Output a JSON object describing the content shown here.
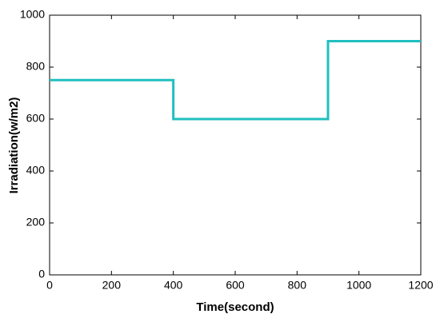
{
  "chart_data": {
    "type": "line",
    "x_label": "Time(second)",
    "y_label": "Irradiation(w/m2)",
    "x": [
      0,
      400,
      400,
      900,
      900,
      1200
    ],
    "series": [
      {
        "color": "#20bfbf",
        "values": [
          750,
          750,
          600,
          600,
          900,
          900
        ]
      }
    ],
    "xlim": [
      0,
      1200
    ],
    "xticks": [
      0,
      200,
      400,
      600,
      800,
      1000,
      1200
    ],
    "ylim": [
      0,
      1000
    ],
    "yticks": [
      0,
      200,
      400,
      600,
      800,
      1000
    ],
    "grid": false
  }
}
